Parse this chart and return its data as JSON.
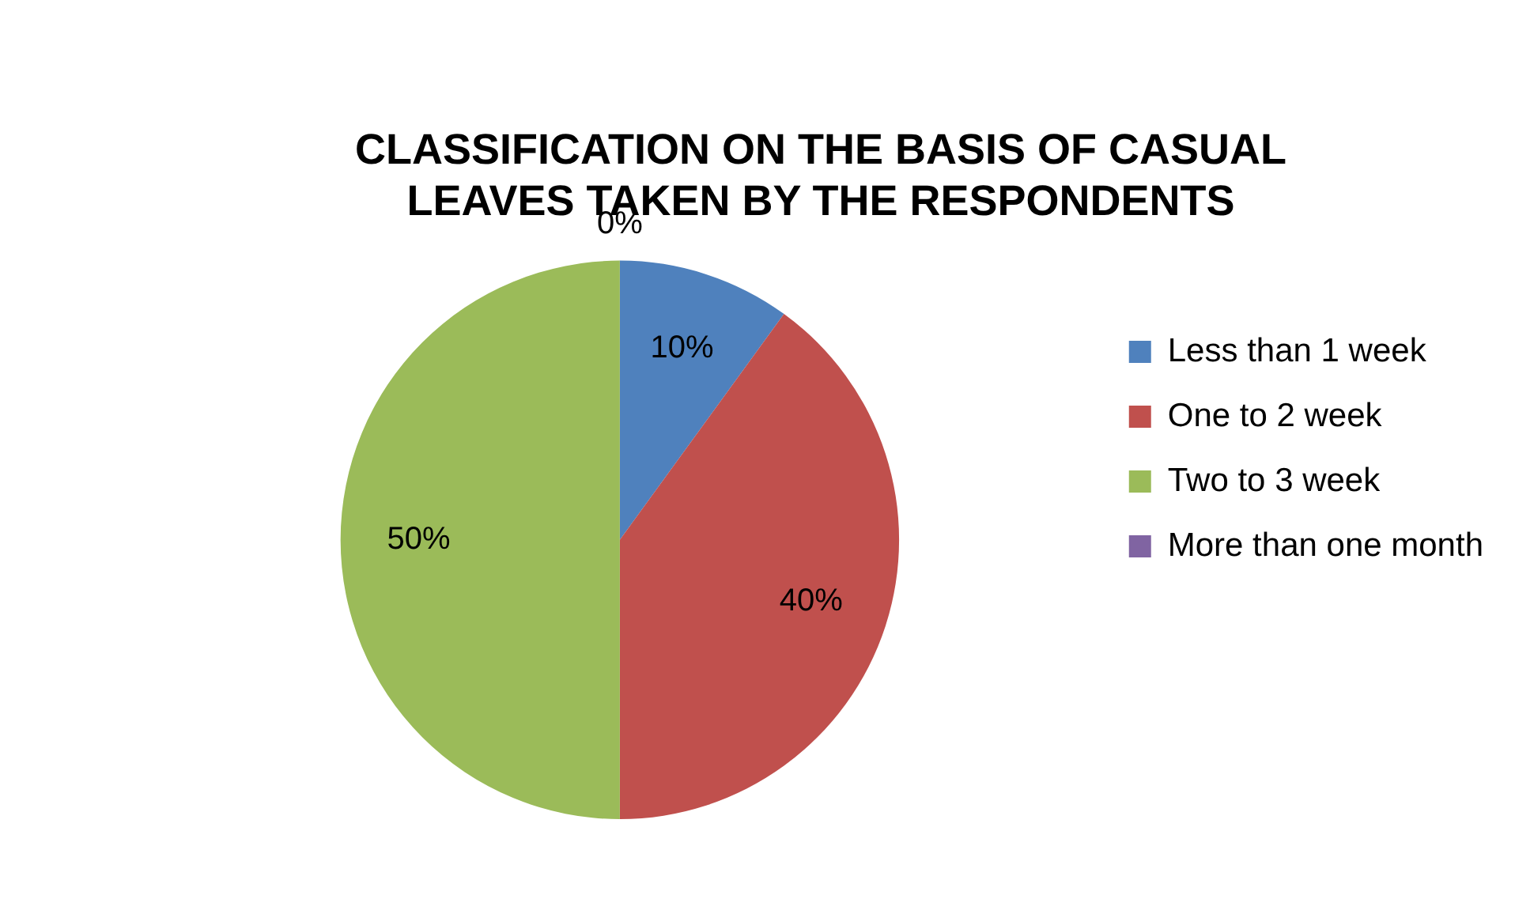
{
  "chart_data": {
    "type": "pie",
    "title": "CLASSIFICATION ON THE BASIS OF CASUAL LEAVES TAKEN BY THE RESPONDENTS",
    "categories": [
      "Less than 1 week",
      "One to 2 week",
      "Two to 3 week",
      "More than one month"
    ],
    "values": [
      10,
      40,
      50,
      0
    ],
    "colors": [
      "#4f81bd",
      "#c0504d",
      "#9bbb59",
      "#8064a2"
    ],
    "value_labels": [
      "10%",
      "40%",
      "50%",
      "0%"
    ],
    "legend": "right"
  }
}
